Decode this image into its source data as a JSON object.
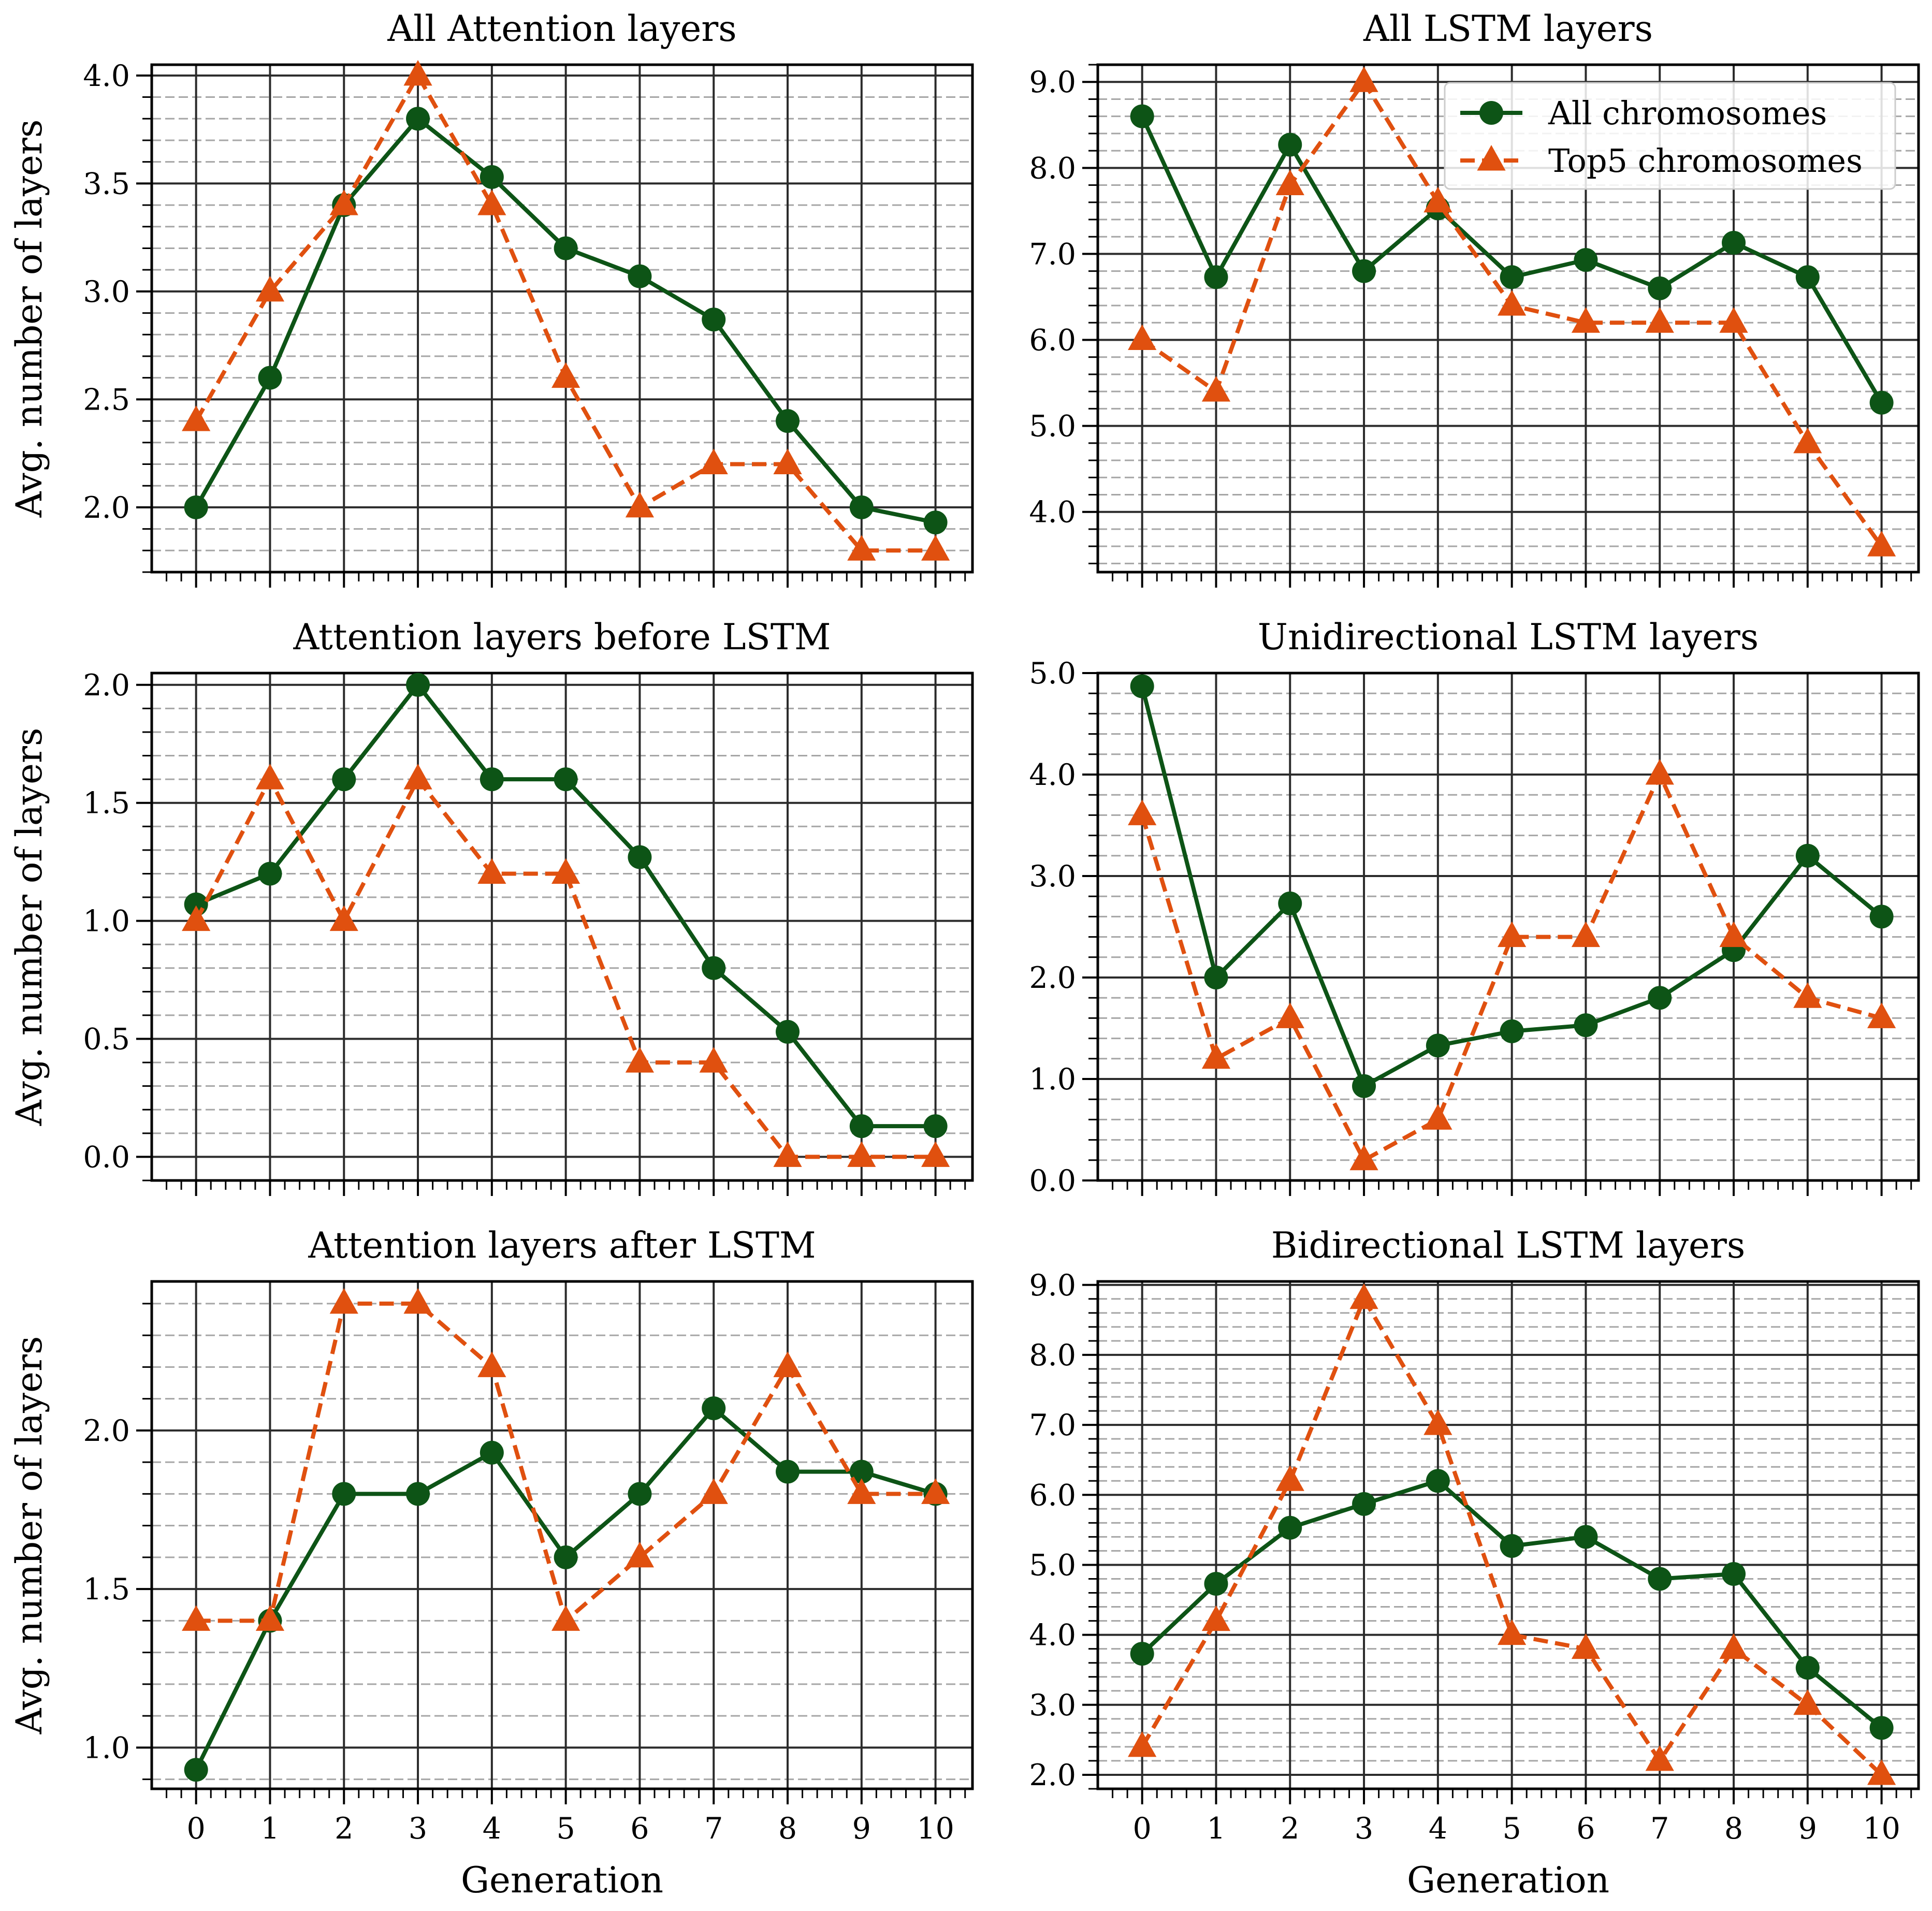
{
  "colors": {
    "all_chromosomes": "#0d5416",
    "top5_chromosomes": "#e0500f",
    "grid_major": "#2b2b2b",
    "grid_minor": "#a6a6a6"
  },
  "legend": {
    "entries": [
      "All chromosomes",
      "Top5 chromosomes"
    ]
  },
  "chart_data": [
    {
      "type": "line",
      "title": "All Attention layers",
      "xlabel": "",
      "ylabel": "Avg. number of layers",
      "x": [
        0,
        1,
        2,
        3,
        4,
        5,
        6,
        7,
        8,
        9,
        10
      ],
      "x_tick_labels": [],
      "xlim": [
        -0.6,
        10.5
      ],
      "ylim": [
        1.7,
        4.05
      ],
      "y_ticks": [
        2.0,
        2.5,
        3.0,
        3.5,
        4.0
      ],
      "y_tick_labels": [
        "2.0",
        "2.5",
        "3.0",
        "3.5",
        "4.0"
      ],
      "grid": true,
      "series": [
        {
          "name": "All chromosomes",
          "marker": "circle",
          "line": "solid",
          "values": [
            2.0,
            2.6,
            3.4,
            3.8,
            3.53,
            3.2,
            3.07,
            2.87,
            2.4,
            2.0,
            1.93
          ]
        },
        {
          "name": "Top5 chromosomes",
          "marker": "triangle",
          "line": "dashed",
          "values": [
            2.4,
            3.0,
            3.4,
            4.0,
            3.4,
            2.6,
            2.0,
            2.2,
            2.2,
            1.8,
            1.8
          ]
        }
      ]
    },
    {
      "type": "line",
      "title": "All LSTM layers",
      "xlabel": "",
      "ylabel": "",
      "x": [
        0,
        1,
        2,
        3,
        4,
        5,
        6,
        7,
        8,
        9,
        10
      ],
      "x_tick_labels": [],
      "xlim": [
        -0.6,
        10.5
      ],
      "ylim": [
        3.3,
        9.2
      ],
      "y_ticks": [
        4.0,
        5.0,
        6.0,
        7.0,
        8.0,
        9.0
      ],
      "y_tick_labels": [
        "4.0",
        "5.0",
        "6.0",
        "7.0",
        "8.0",
        "9.0"
      ],
      "grid": true,
      "legend_position": "top-right",
      "series": [
        {
          "name": "All chromosomes",
          "marker": "circle",
          "line": "solid",
          "values": [
            8.6,
            6.73,
            8.27,
            6.8,
            7.53,
            6.73,
            6.93,
            6.6,
            7.13,
            6.73,
            5.27
          ]
        },
        {
          "name": "Top5 chromosomes",
          "marker": "triangle",
          "line": "dashed",
          "values": [
            6.0,
            5.4,
            7.8,
            9.0,
            7.6,
            6.4,
            6.2,
            6.2,
            6.2,
            4.8,
            3.6
          ]
        }
      ]
    },
    {
      "type": "line",
      "title": "Attention layers before LSTM",
      "xlabel": "",
      "ylabel": "Avg. number of layers",
      "x": [
        0,
        1,
        2,
        3,
        4,
        5,
        6,
        7,
        8,
        9,
        10
      ],
      "x_tick_labels": [],
      "xlim": [
        -0.6,
        10.5
      ],
      "ylim": [
        -0.1,
        2.05
      ],
      "y_ticks": [
        0.0,
        0.5,
        1.0,
        1.5,
        2.0
      ],
      "y_tick_labels": [
        "0.0",
        "0.5",
        "1.0",
        "1.5",
        "2.0"
      ],
      "grid": true,
      "series": [
        {
          "name": "All chromosomes",
          "marker": "circle",
          "line": "solid",
          "values": [
            1.07,
            1.2,
            1.6,
            2.0,
            1.6,
            1.6,
            1.27,
            0.8,
            0.53,
            0.13,
            0.13
          ]
        },
        {
          "name": "Top5 chromosomes",
          "marker": "triangle",
          "line": "dashed",
          "values": [
            1.0,
            1.6,
            1.0,
            1.6,
            1.2,
            1.2,
            0.4,
            0.4,
            0.0,
            0.0,
            0.0
          ]
        }
      ]
    },
    {
      "type": "line",
      "title": "Unidirectional LSTM layers",
      "xlabel": "",
      "ylabel": "",
      "x": [
        0,
        1,
        2,
        3,
        4,
        5,
        6,
        7,
        8,
        9,
        10
      ],
      "x_tick_labels": [],
      "xlim": [
        -0.6,
        10.5
      ],
      "ylim": [
        0.0,
        5.0
      ],
      "y_ticks": [
        0.0,
        1.0,
        2.0,
        3.0,
        4.0,
        5.0
      ],
      "y_tick_labels": [
        "0.0",
        "1.0",
        "2.0",
        "3.0",
        "4.0",
        "5.0"
      ],
      "grid": true,
      "series": [
        {
          "name": "All chromosomes",
          "marker": "circle",
          "line": "solid",
          "values": [
            4.87,
            2.0,
            2.73,
            0.93,
            1.33,
            1.47,
            1.53,
            1.8,
            2.27,
            3.2,
            2.6
          ]
        },
        {
          "name": "Top5 chromosomes",
          "marker": "triangle",
          "line": "dashed",
          "values": [
            3.6,
            1.2,
            1.6,
            0.2,
            0.6,
            2.4,
            2.4,
            4.0,
            2.4,
            1.8,
            1.6
          ]
        }
      ]
    },
    {
      "type": "line",
      "title": "Attention layers after LSTM",
      "xlabel": "Generation",
      "ylabel": "Avg. number of layers",
      "x": [
        0,
        1,
        2,
        3,
        4,
        5,
        6,
        7,
        8,
        9,
        10
      ],
      "x_tick_labels": [
        "0",
        "1",
        "2",
        "3",
        "4",
        "5",
        "6",
        "7",
        "8",
        "9",
        "10"
      ],
      "xlim": [
        -0.6,
        10.5
      ],
      "ylim": [
        0.87,
        2.47
      ],
      "y_ticks": [
        1.0,
        1.5,
        2.0
      ],
      "y_tick_labels": [
        "1.0",
        "1.5",
        "2.0"
      ],
      "grid": true,
      "series": [
        {
          "name": "All chromosomes",
          "marker": "circle",
          "line": "solid",
          "values": [
            0.93,
            1.4,
            1.8,
            1.8,
            1.93,
            1.6,
            1.8,
            2.07,
            1.87,
            1.87,
            1.8
          ]
        },
        {
          "name": "Top5 chromosomes",
          "marker": "triangle",
          "line": "dashed",
          "values": [
            1.4,
            1.4,
            2.4,
            2.4,
            2.2,
            1.4,
            1.6,
            1.8,
            2.2,
            1.8,
            1.8
          ]
        }
      ]
    },
    {
      "type": "line",
      "title": "Bidirectional LSTM layers",
      "xlabel": "Generation",
      "ylabel": "",
      "x": [
        0,
        1,
        2,
        3,
        4,
        5,
        6,
        7,
        8,
        9,
        10
      ],
      "x_tick_labels": [
        "0",
        "1",
        "2",
        "3",
        "4",
        "5",
        "6",
        "7",
        "8",
        "9",
        "10"
      ],
      "xlim": [
        -0.6,
        10.5
      ],
      "ylim": [
        1.8,
        9.05
      ],
      "y_ticks": [
        2.0,
        3.0,
        4.0,
        5.0,
        6.0,
        7.0,
        8.0,
        9.0
      ],
      "y_tick_labels": [
        "2.0",
        "3.0",
        "4.0",
        "5.0",
        "6.0",
        "7.0",
        "8.0",
        "9.0"
      ],
      "grid": true,
      "series": [
        {
          "name": "All chromosomes",
          "marker": "circle",
          "line": "solid",
          "values": [
            3.73,
            4.73,
            5.53,
            5.87,
            6.2,
            5.27,
            5.4,
            4.8,
            4.87,
            3.53,
            2.67
          ]
        },
        {
          "name": "Top5 chromosomes",
          "marker": "triangle",
          "line": "dashed",
          "values": [
            2.4,
            4.2,
            6.2,
            8.8,
            7.0,
            4.0,
            3.8,
            2.2,
            3.8,
            3.0,
            2.0
          ]
        }
      ]
    }
  ]
}
